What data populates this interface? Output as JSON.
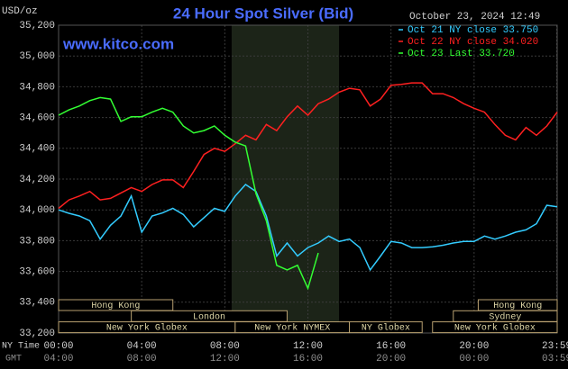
{
  "chart_data": {
    "type": "line",
    "title": "24 Hour Spot Silver (Bid)",
    "date_label": "October 23, 2024 12:49",
    "source": "www.kitco.com",
    "y_unit": "USD/oz",
    "x_label": "NY Time",
    "x2_label": "GMT",
    "x": [
      0,
      0.5,
      1,
      1.5,
      2,
      2.5,
      3,
      3.5,
      4,
      4.5,
      5,
      5.5,
      6,
      6.5,
      7,
      7.5,
      8,
      8.5,
      9,
      9.5,
      10,
      10.5,
      11,
      11.5,
      12,
      12.5,
      13,
      13.5,
      14,
      14.5,
      15,
      15.5,
      16,
      16.5,
      17,
      17.5,
      18,
      18.5,
      19,
      19.5,
      20,
      20.5,
      21,
      21.5,
      22,
      22.5,
      23,
      23.5,
      24
    ],
    "series": [
      {
        "name": "Oct 21 NY close 33.750",
        "color": "#33ccff",
        "values": [
          34.0,
          33.978,
          33.96,
          33.93,
          33.81,
          33.9,
          33.96,
          34.09,
          33.855,
          33.96,
          33.98,
          34.01,
          33.97,
          33.89,
          33.95,
          34.01,
          33.99,
          34.09,
          34.165,
          34.12,
          33.96,
          33.7,
          33.785,
          33.7,
          33.755,
          33.785,
          33.83,
          33.795,
          33.81,
          33.755,
          33.61,
          33.7,
          33.795,
          33.785,
          33.755,
          33.755,
          33.76,
          33.77,
          33.785,
          33.795,
          33.795,
          33.83,
          33.81,
          33.83,
          33.855,
          33.87,
          33.91,
          34.03,
          34.02
        ]
      },
      {
        "name": "Oct 22 NY close 34.020",
        "color": "#ff2020",
        "values": [
          34.01,
          34.065,
          34.09,
          34.12,
          34.065,
          34.075,
          34.11,
          34.145,
          34.12,
          34.165,
          34.195,
          34.195,
          34.145,
          34.25,
          34.36,
          34.4,
          34.38,
          34.43,
          34.485,
          34.455,
          34.555,
          34.515,
          34.605,
          34.675,
          34.615,
          34.69,
          34.72,
          34.765,
          34.79,
          34.78,
          34.675,
          34.72,
          34.81,
          34.815,
          34.825,
          34.825,
          34.755,
          34.755,
          34.73,
          34.69,
          34.66,
          34.635,
          34.555,
          34.485,
          34.455,
          34.535,
          34.485,
          34.545,
          34.635
        ]
      },
      {
        "name": "Oct 23 Last 33.720",
        "color": "#33ff33",
        "values": [
          34.615,
          34.65,
          34.675,
          34.71,
          34.73,
          34.72,
          34.575,
          34.605,
          34.605,
          34.635,
          34.66,
          34.635,
          34.545,
          34.5,
          34.515,
          34.545,
          34.485,
          34.44,
          34.415,
          34.105,
          33.93,
          33.64,
          33.61,
          33.64,
          33.49,
          33.72,
          null,
          null,
          null,
          null,
          null,
          null,
          null,
          null,
          null,
          null,
          null,
          null,
          null,
          null,
          null,
          null,
          null,
          null,
          null,
          null,
          null,
          null,
          null
        ]
      }
    ],
    "xlim": [
      0,
      24
    ],
    "ylim": [
      33.2,
      35.2
    ],
    "yticks": [
      {
        "value": 33.2,
        "label": "33,200"
      },
      {
        "value": 33.4,
        "label": "33,400"
      },
      {
        "value": 33.6,
        "label": "33,600"
      },
      {
        "value": 33.8,
        "label": "33,800"
      },
      {
        "value": 34.0,
        "label": "34,000"
      },
      {
        "value": 34.2,
        "label": "34,200"
      },
      {
        "value": 34.4,
        "label": "34,400"
      },
      {
        "value": 34.6,
        "label": "34,600"
      },
      {
        "value": 34.8,
        "label": "34,800"
      },
      {
        "value": 35.0,
        "label": "35,000"
      },
      {
        "value": 35.2,
        "label": "35,200"
      }
    ],
    "xticks": [
      {
        "value": 0,
        "label": "00:00"
      },
      {
        "value": 4,
        "label": "04:00"
      },
      {
        "value": 8,
        "label": "08:00"
      },
      {
        "value": 12,
        "label": "12:00"
      },
      {
        "value": 16,
        "label": "16:00"
      },
      {
        "value": 20,
        "label": "20:00"
      },
      {
        "value": 23.98,
        "label": "23:59"
      }
    ],
    "x2ticks": [
      {
        "value": 0,
        "label": "04:00"
      },
      {
        "value": 4,
        "label": "08:00"
      },
      {
        "value": 8,
        "label": "12:00"
      },
      {
        "value": 12,
        "label": "16:00"
      },
      {
        "value": 16,
        "label": "20:00"
      },
      {
        "value": 20,
        "label": "00:00"
      },
      {
        "value": 23.98,
        "label": "03:59"
      }
    ],
    "grid": true,
    "legend": "top-right",
    "shaded_range": [
      8.33,
      13.5
    ],
    "sessions": [
      {
        "label": "Hong Kong",
        "start": 0,
        "end": 5.5,
        "row": 0
      },
      {
        "label": "Hong Kong",
        "start": 20.2,
        "end": 24,
        "row": 0
      },
      {
        "label": "London",
        "start": 3.5,
        "end": 11,
        "row": 1
      },
      {
        "label": "Sydney",
        "start": 19,
        "end": 24,
        "row": 1
      },
      {
        "label": "New York Globex",
        "start": 0,
        "end": 8.5,
        "row": 2
      },
      {
        "label": "New York NYMEX",
        "start": 8.5,
        "end": 14,
        "row": 2
      },
      {
        "label": "NY Globex",
        "start": 14,
        "end": 17.5,
        "row": 2
      },
      {
        "label": "New York Globex",
        "start": 18,
        "end": 24,
        "row": 2
      }
    ]
  }
}
